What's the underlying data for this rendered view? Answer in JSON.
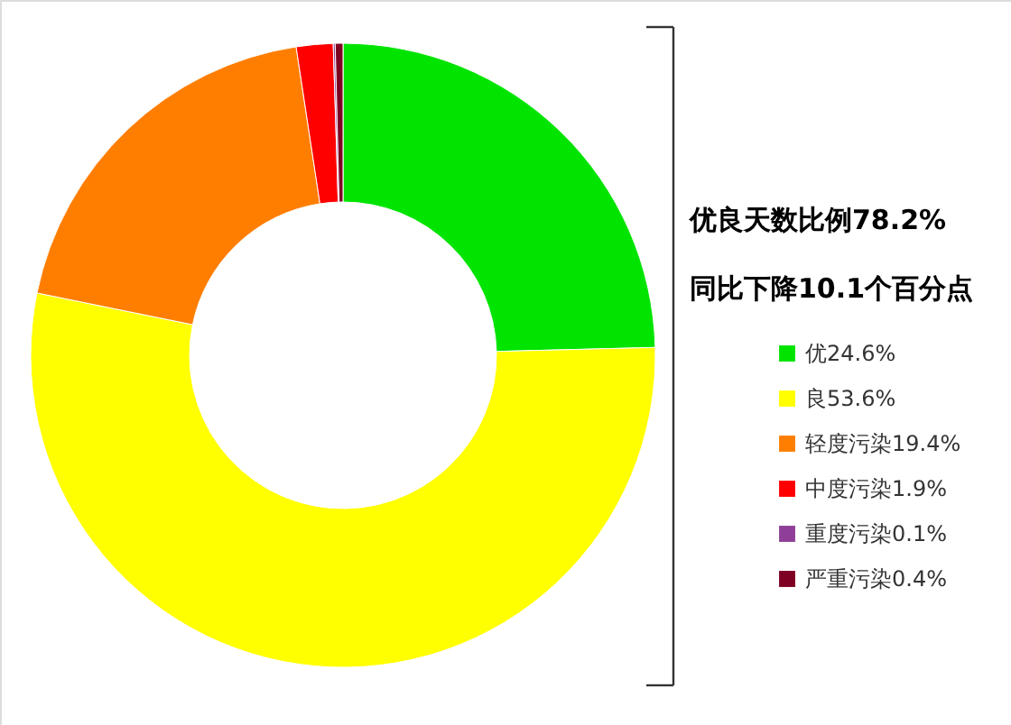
{
  "chart_data": {
    "type": "donut",
    "categories": [
      "优24.6%",
      "良53.6%",
      "轻度污染19.4%",
      "中度污染1.9%",
      "重度污染0.1%",
      "严重污染0.4%"
    ],
    "values": [
      24.6,
      53.6,
      19.4,
      1.9,
      0.1,
      0.4
    ],
    "colors": [
      "#00e400",
      "#ffff00",
      "#ff7e00",
      "#ff0000",
      "#8f3f97",
      "#7e0023"
    ],
    "legend": "right",
    "annotations": [
      "优良天数比例78.2%",
      "同比下降10.1个百分点"
    ]
  }
}
